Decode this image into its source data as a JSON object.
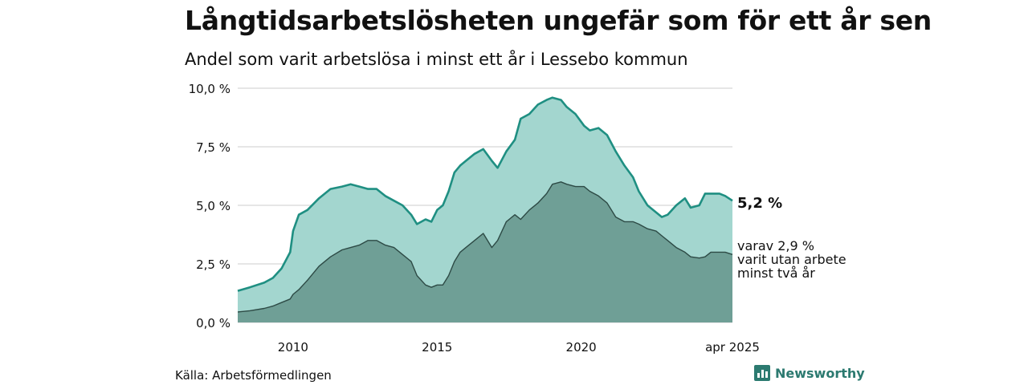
{
  "header": {
    "title": "Långtidsarbetslösheten ungefär som för ett år sen",
    "subtitle": "Andel som varit arbetslösa i minst ett år i Lessebo kommun"
  },
  "footer": {
    "source": "Källa: Arbetsförmedlingen",
    "brand": "Newsworthy"
  },
  "colors": {
    "total_fill": "#a3d6cf",
    "total_line": "#1f8f82",
    "sub_fill": "#6f9f96",
    "sub_line": "#2d4a45",
    "grid": "#dddddd"
  },
  "chart_data": {
    "type": "area",
    "x_unit": "year (decimal)",
    "xlim": [
      2008.08,
      2025.25
    ],
    "ylim": [
      0,
      10
    ],
    "grid": true,
    "x_ticks": [
      {
        "value": 2010,
        "label": "2010"
      },
      {
        "value": 2015,
        "label": "2015"
      },
      {
        "value": 2020,
        "label": "2020"
      },
      {
        "value": 2025.25,
        "label": "apr 2025"
      }
    ],
    "y_ticks": [
      {
        "value": 0,
        "label": "0,0 %"
      },
      {
        "value": 2.5,
        "label": "2,5 %"
      },
      {
        "value": 5,
        "label": "5,0 %"
      },
      {
        "value": 7.5,
        "label": "7,5 %"
      },
      {
        "value": 10,
        "label": "10,0 %"
      }
    ],
    "end_labels": {
      "total": "5,2 %",
      "sub": [
        "varav 2,9 %",
        "varit utan arbete",
        "minst två år"
      ]
    },
    "series": [
      {
        "key": "total",
        "x": [
          2008.08,
          2008.5,
          2009.0,
          2009.3,
          2009.6,
          2009.9,
          2010.0,
          2010.2,
          2010.5,
          2010.9,
          2011.3,
          2011.7,
          2012.0,
          2012.3,
          2012.6,
          2012.9,
          2013.2,
          2013.5,
          2013.8,
          2014.1,
          2014.3,
          2014.6,
          2014.8,
          2015.0,
          2015.2,
          2015.4,
          2015.6,
          2015.8,
          2016.0,
          2016.3,
          2016.6,
          2016.9,
          2017.1,
          2017.4,
          2017.7,
          2017.9,
          2018.2,
          2018.5,
          2018.8,
          2019.0,
          2019.3,
          2019.5,
          2019.8,
          2020.1,
          2020.3,
          2020.6,
          2020.9,
          2021.2,
          2021.5,
          2021.8,
          2022.0,
          2022.3,
          2022.6,
          2022.8,
          2023.0,
          2023.3,
          2023.6,
          2023.8,
          2024.1,
          2024.3,
          2024.5,
          2024.8,
          2025.0,
          2025.25
        ],
        "values": [
          1.35,
          1.5,
          1.7,
          1.9,
          2.3,
          3.0,
          3.9,
          4.6,
          4.8,
          5.3,
          5.7,
          5.8,
          5.9,
          5.8,
          5.7,
          5.7,
          5.4,
          5.2,
          5.0,
          4.6,
          4.2,
          4.4,
          4.3,
          4.8,
          5.0,
          5.6,
          6.4,
          6.7,
          6.9,
          7.2,
          7.4,
          6.9,
          6.6,
          7.3,
          7.8,
          8.7,
          8.9,
          9.3,
          9.5,
          9.6,
          9.5,
          9.2,
          8.9,
          8.4,
          8.2,
          8.3,
          8.0,
          7.3,
          6.7,
          6.2,
          5.6,
          5.0,
          4.7,
          4.5,
          4.6,
          5.0,
          5.3,
          4.9,
          5.0,
          5.5,
          5.5,
          5.5,
          5.4,
          5.2
        ]
      },
      {
        "key": "sub",
        "x": [
          2008.08,
          2008.5,
          2009.0,
          2009.3,
          2009.6,
          2009.9,
          2010.0,
          2010.2,
          2010.5,
          2010.9,
          2011.3,
          2011.7,
          2012.0,
          2012.3,
          2012.6,
          2012.9,
          2013.2,
          2013.5,
          2013.8,
          2014.1,
          2014.3,
          2014.6,
          2014.8,
          2015.0,
          2015.2,
          2015.4,
          2015.6,
          2015.8,
          2016.0,
          2016.3,
          2016.6,
          2016.9,
          2017.1,
          2017.4,
          2017.7,
          2017.9,
          2018.2,
          2018.5,
          2018.8,
          2019.0,
          2019.3,
          2019.5,
          2019.8,
          2020.1,
          2020.3,
          2020.6,
          2020.9,
          2021.2,
          2021.5,
          2021.8,
          2022.0,
          2022.3,
          2022.6,
          2022.8,
          2023.0,
          2023.3,
          2023.6,
          2023.8,
          2024.1,
          2024.3,
          2024.5,
          2024.8,
          2025.0,
          2025.25
        ],
        "values": [
          0.45,
          0.5,
          0.6,
          0.7,
          0.85,
          1.0,
          1.2,
          1.4,
          1.8,
          2.4,
          2.8,
          3.1,
          3.2,
          3.3,
          3.5,
          3.5,
          3.3,
          3.2,
          2.9,
          2.6,
          2.0,
          1.6,
          1.5,
          1.6,
          1.6,
          2.0,
          2.6,
          3.0,
          3.2,
          3.5,
          3.8,
          3.2,
          3.5,
          4.3,
          4.6,
          4.4,
          4.8,
          5.1,
          5.5,
          5.9,
          6.0,
          5.9,
          5.8,
          5.8,
          5.6,
          5.4,
          5.1,
          4.5,
          4.3,
          4.3,
          4.2,
          4.0,
          3.9,
          3.7,
          3.5,
          3.2,
          3.0,
          2.8,
          2.75,
          2.8,
          3.0,
          3.0,
          3.0,
          2.9
        ]
      }
    ]
  }
}
